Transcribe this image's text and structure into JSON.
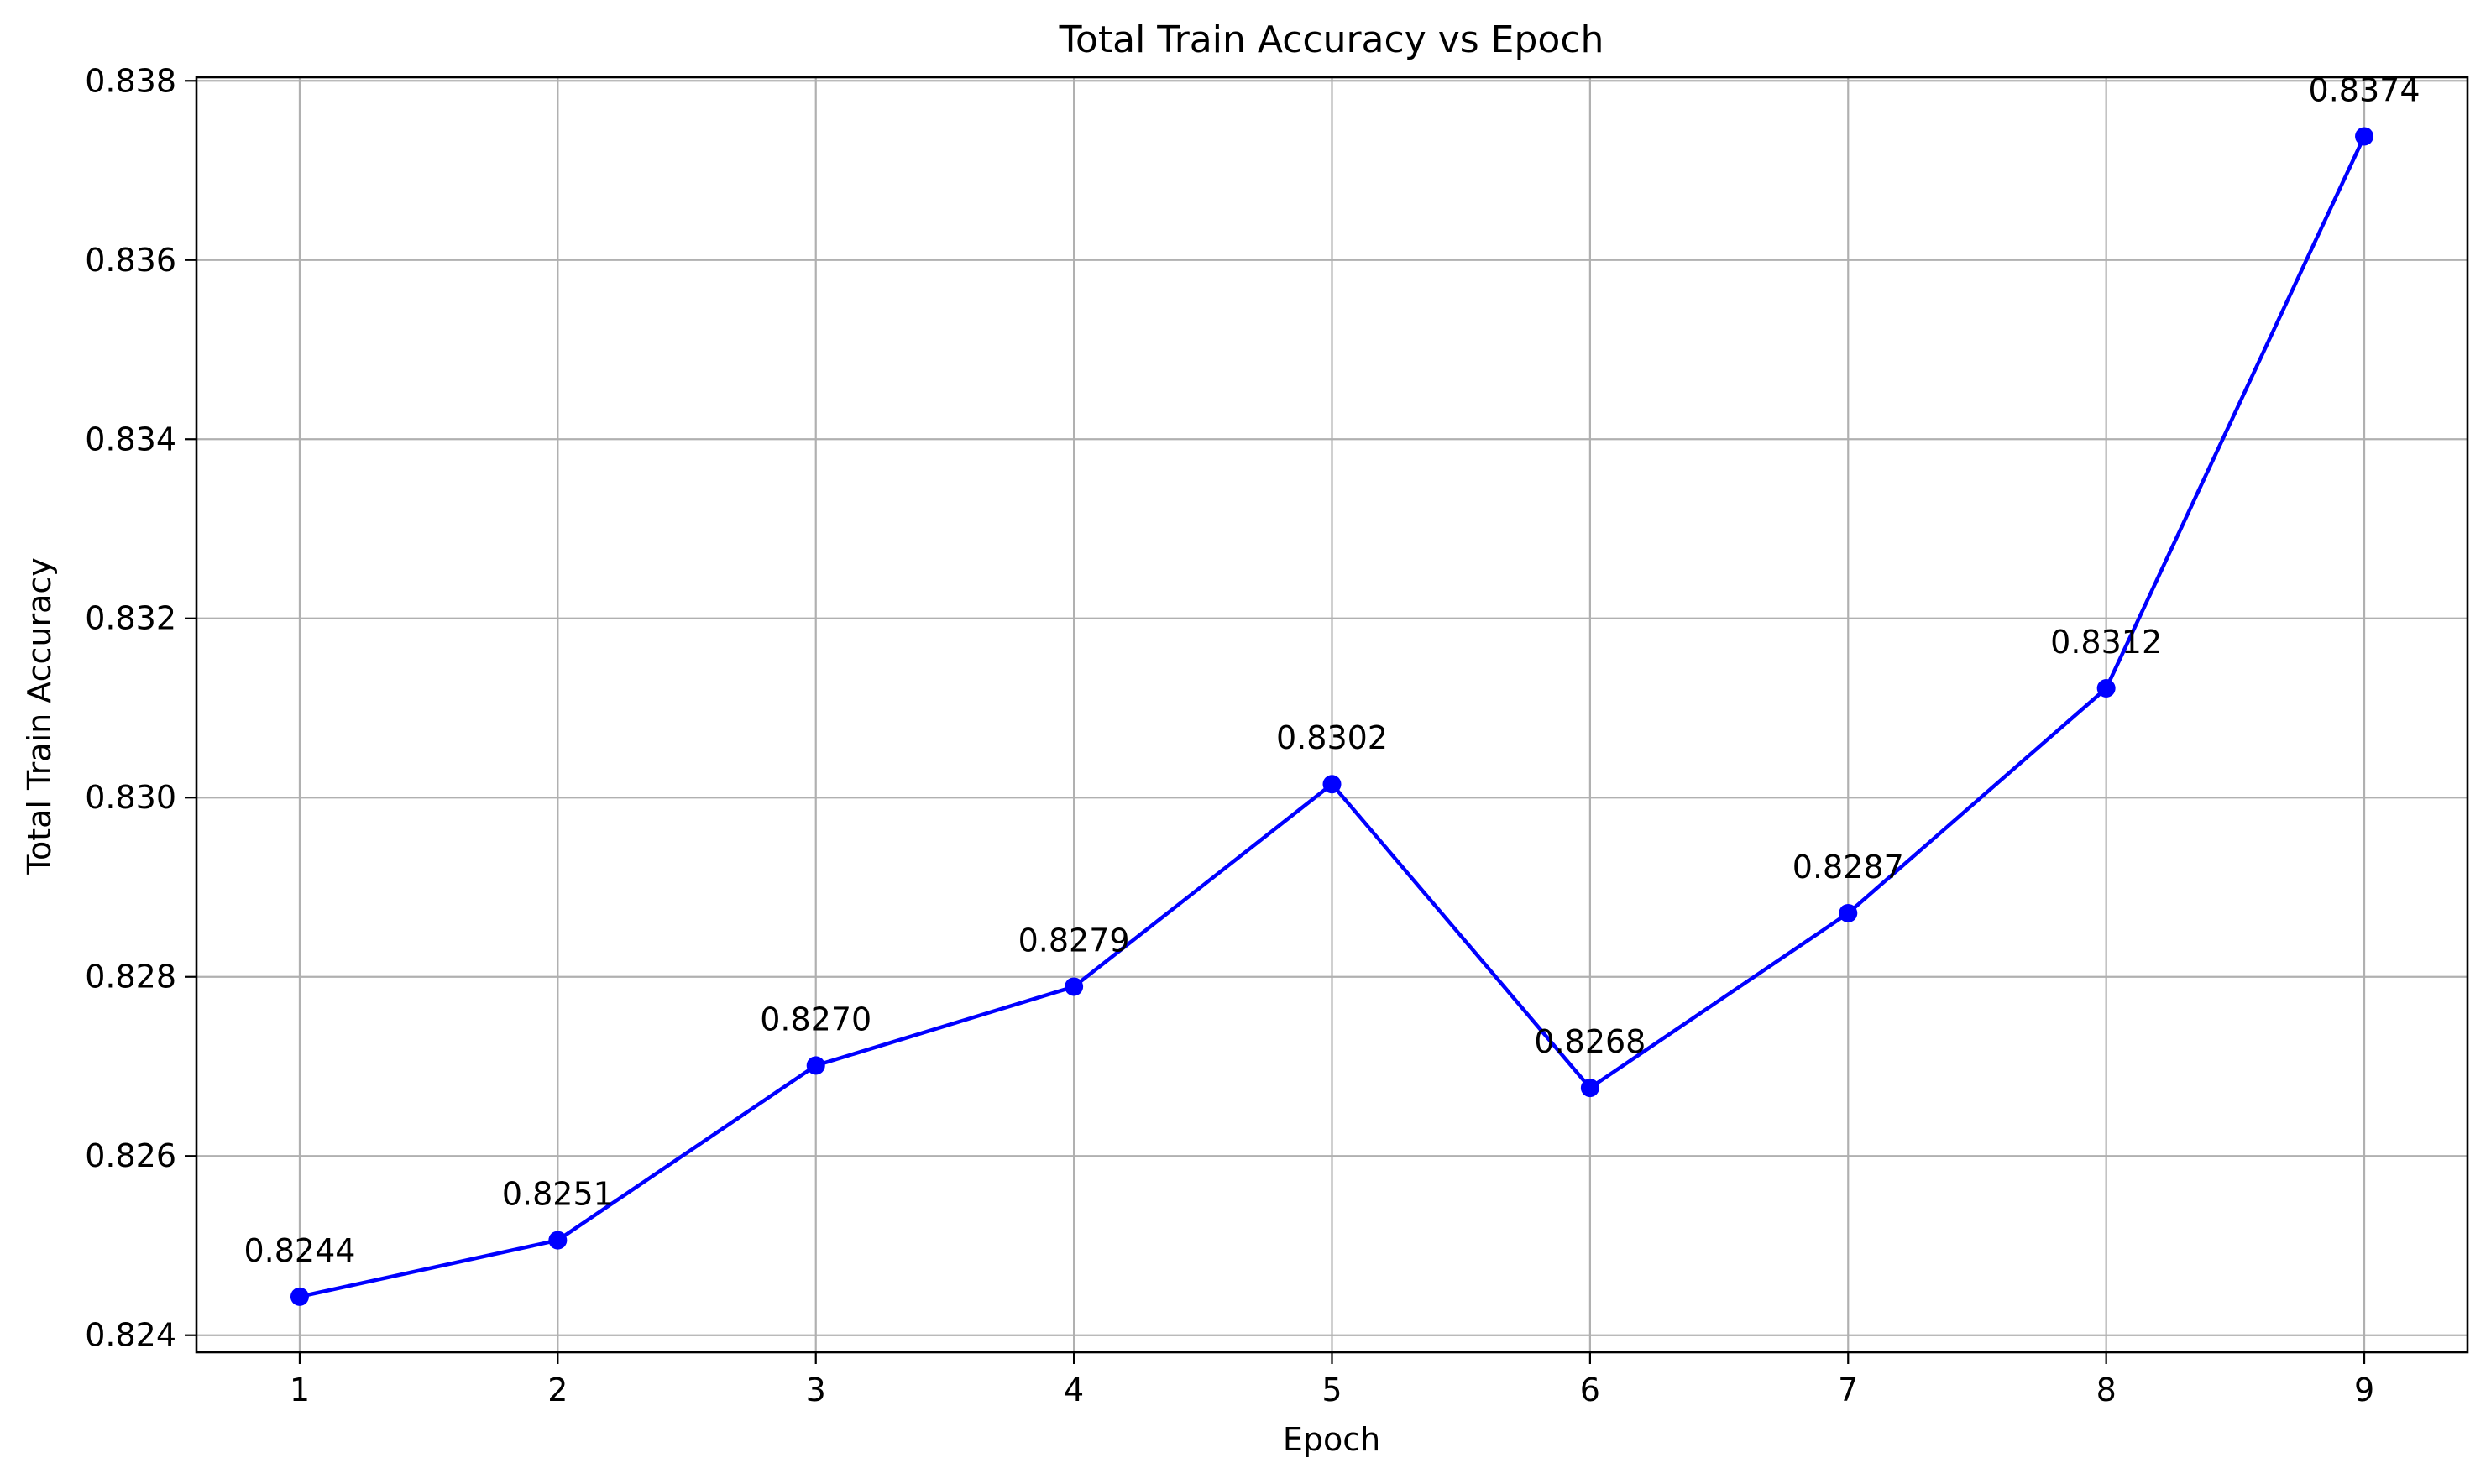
{
  "chart_data": {
    "type": "line",
    "title": "Total Train Accuracy vs Epoch",
    "xlabel": "Epoch",
    "ylabel": "Total Train Accuracy",
    "x": [
      1,
      2,
      3,
      4,
      5,
      6,
      7,
      8,
      9
    ],
    "series": [
      {
        "values": [
          0.82443,
          0.82506,
          0.82701,
          0.82789,
          0.83015,
          0.82676,
          0.82871,
          0.83122,
          0.83738
        ],
        "labels": [
          "0.8244",
          "0.8251",
          "0.8270",
          "0.8279",
          "0.8302",
          "0.8268",
          "0.8287",
          "0.8312",
          "0.8374"
        ],
        "color": "#0000ff",
        "marker": "circle"
      }
    ],
    "xlim": [
      0.6,
      9.4
    ],
    "ylim": [
      0.82381,
      0.83804
    ],
    "xticks": [
      "1",
      "2",
      "3",
      "4",
      "5",
      "6",
      "7",
      "8",
      "9"
    ],
    "yticks": [
      "0.824",
      "0.826",
      "0.828",
      "0.830",
      "0.832",
      "0.834",
      "0.836",
      "0.838"
    ],
    "ytick_values": [
      0.824,
      0.826,
      0.828,
      0.83,
      0.832,
      0.834,
      0.836,
      0.838
    ],
    "grid": true,
    "legend": "none"
  }
}
